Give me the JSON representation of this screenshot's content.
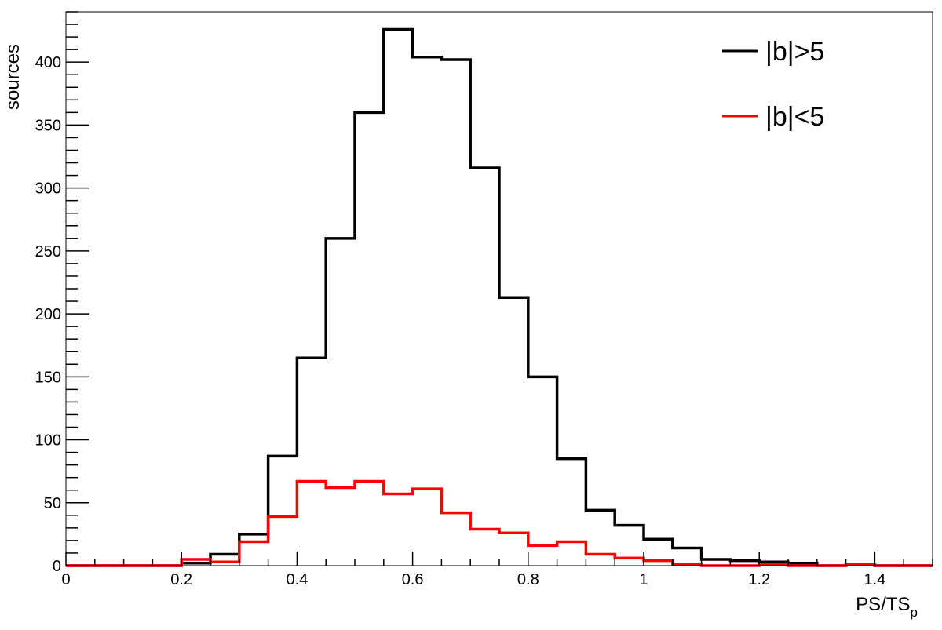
{
  "chart_data": {
    "type": "step-histogram",
    "xlabel": "PS/TS",
    "xlabel_subscript": "p",
    "ylabel": "sources",
    "xlim": [
      0,
      1.5
    ],
    "ylim": [
      0,
      440
    ],
    "grid": false,
    "legend_position": "top-right",
    "x_ticks": [
      {
        "value": 0,
        "label": "0"
      },
      {
        "value": 0.2,
        "label": "0.2"
      },
      {
        "value": 0.4,
        "label": "0.4"
      },
      {
        "value": 0.6,
        "label": "0.6"
      },
      {
        "value": 0.8,
        "label": "0.8"
      },
      {
        "value": 1.0,
        "label": "1"
      },
      {
        "value": 1.2,
        "label": "1.2"
      },
      {
        "value": 1.4,
        "label": "1.4"
      }
    ],
    "y_ticks": [
      {
        "value": 0,
        "label": "0"
      },
      {
        "value": 50,
        "label": "50"
      },
      {
        "value": 100,
        "label": "100"
      },
      {
        "value": 150,
        "label": "150"
      },
      {
        "value": 200,
        "label": "200"
      },
      {
        "value": 250,
        "label": "250"
      },
      {
        "value": 300,
        "label": "300"
      },
      {
        "value": 350,
        "label": "350"
      },
      {
        "value": 400,
        "label": "400"
      }
    ],
    "bin_width": 0.05,
    "bin_edges": [
      0,
      0.05,
      0.1,
      0.15,
      0.2,
      0.25,
      0.3,
      0.35,
      0.4,
      0.45,
      0.5,
      0.55,
      0.6,
      0.65,
      0.7,
      0.75,
      0.8,
      0.85,
      0.9,
      0.95,
      1.0,
      1.05,
      1.1,
      1.15,
      1.2,
      1.25,
      1.3,
      1.35,
      1.4,
      1.45,
      1.5
    ],
    "series": [
      {
        "name": "|b|>5",
        "color": "#000000",
        "values": [
          0,
          0,
          0,
          0,
          2,
          9,
          25,
          87,
          165,
          260,
          360,
          426,
          404,
          402,
          316,
          213,
          150,
          85,
          44,
          32,
          21,
          14,
          5,
          4,
          3,
          2,
          0,
          1,
          0,
          0
        ]
      },
      {
        "name": "|b|<5",
        "color": "#ff0000",
        "values": [
          0,
          0,
          0,
          0,
          5,
          3,
          19,
          39,
          67,
          62,
          67,
          57,
          61,
          42,
          29,
          26,
          16,
          19,
          9,
          6,
          4,
          1,
          0,
          0,
          1,
          0,
          0,
          1,
          0,
          0
        ]
      }
    ]
  }
}
